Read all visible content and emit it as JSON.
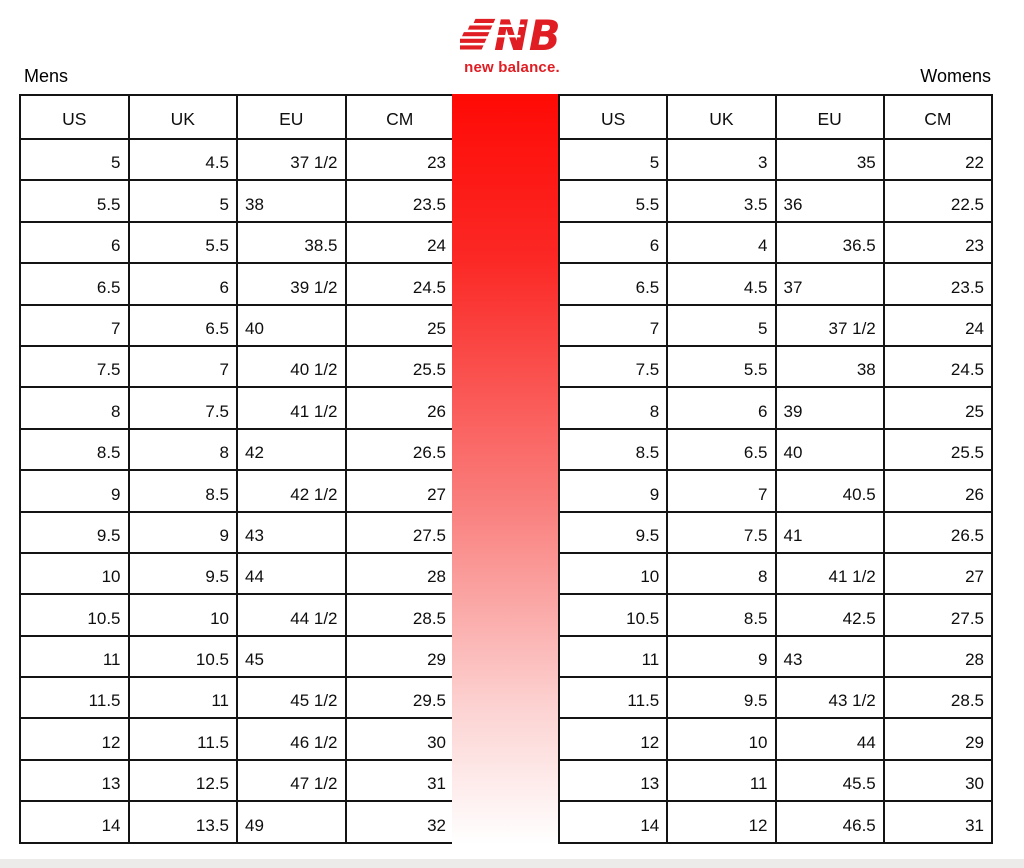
{
  "brand": {
    "monogram": "NB",
    "wordmark": "new balance.",
    "color": "#e01d23"
  },
  "labels": {
    "mens": "Mens",
    "womens": "Womens"
  },
  "colors": {
    "stripe_top": "#ff0a05",
    "stripe_bottom": "#ffffff",
    "table_border": "#141414",
    "bottom_bar": "#edebe9"
  },
  "chart_data": [
    {
      "type": "table",
      "title": "Mens",
      "columns": [
        "US",
        "UK",
        "EU",
        "CM"
      ],
      "rows": [
        [
          "5",
          "4.5",
          "37 1/2",
          "23"
        ],
        [
          "5.5",
          "5",
          "38",
          "23.5"
        ],
        [
          "6",
          "5.5",
          "38.5",
          "24"
        ],
        [
          "6.5",
          "6",
          "39 1/2",
          "24.5"
        ],
        [
          "7",
          "6.5",
          "40",
          "25"
        ],
        [
          "7.5",
          "7",
          "40 1/2",
          "25.5"
        ],
        [
          "8",
          "7.5",
          "41 1/2",
          "26"
        ],
        [
          "8.5",
          "8",
          "42",
          "26.5"
        ],
        [
          "9",
          "8.5",
          "42 1/2",
          "27"
        ],
        [
          "9.5",
          "9",
          "43",
          "27.5"
        ],
        [
          "10",
          "9.5",
          "44",
          "28"
        ],
        [
          "10.5",
          "10",
          "44 1/2",
          "28.5"
        ],
        [
          "11",
          "10.5",
          "45",
          "29"
        ],
        [
          "11.5",
          "11",
          "45 1/2",
          "29.5"
        ],
        [
          "12",
          "11.5",
          "46 1/2",
          "30"
        ],
        [
          "13",
          "12.5",
          "47 1/2",
          "31"
        ],
        [
          "14",
          "13.5",
          "49",
          "32"
        ]
      ],
      "eu_align": [
        "right",
        "left",
        "right",
        "right",
        "left",
        "right",
        "right",
        "left",
        "right",
        "left",
        "left",
        "right",
        "left",
        "right",
        "right",
        "right",
        "left"
      ]
    },
    {
      "type": "table",
      "title": "Womens",
      "columns": [
        "US",
        "UK",
        "EU",
        "CM"
      ],
      "rows": [
        [
          "5",
          "3",
          "35",
          "22"
        ],
        [
          "5.5",
          "3.5",
          "36",
          "22.5"
        ],
        [
          "6",
          "4",
          "36.5",
          "23"
        ],
        [
          "6.5",
          "4.5",
          "37",
          "23.5"
        ],
        [
          "7",
          "5",
          "37 1/2",
          "24"
        ],
        [
          "7.5",
          "5.5",
          "38",
          "24.5"
        ],
        [
          "8",
          "6",
          "39",
          "25"
        ],
        [
          "8.5",
          "6.5",
          "40",
          "25.5"
        ],
        [
          "9",
          "7",
          "40.5",
          "26"
        ],
        [
          "9.5",
          "7.5",
          "41",
          "26.5"
        ],
        [
          "10",
          "8",
          "41 1/2",
          "27"
        ],
        [
          "10.5",
          "8.5",
          "42.5",
          "27.5"
        ],
        [
          "11",
          "9",
          "43",
          "28"
        ],
        [
          "11.5",
          "9.5",
          "43 1/2",
          "28.5"
        ],
        [
          "12",
          "10",
          "44",
          "29"
        ],
        [
          "13",
          "11",
          "45.5",
          "30"
        ],
        [
          "14",
          "12",
          "46.5",
          "31"
        ]
      ],
      "eu_align": [
        "right",
        "left",
        "right",
        "left",
        "right",
        "right",
        "left",
        "left",
        "right",
        "left",
        "right",
        "right",
        "left",
        "right",
        "right",
        "right",
        "right"
      ]
    }
  ]
}
